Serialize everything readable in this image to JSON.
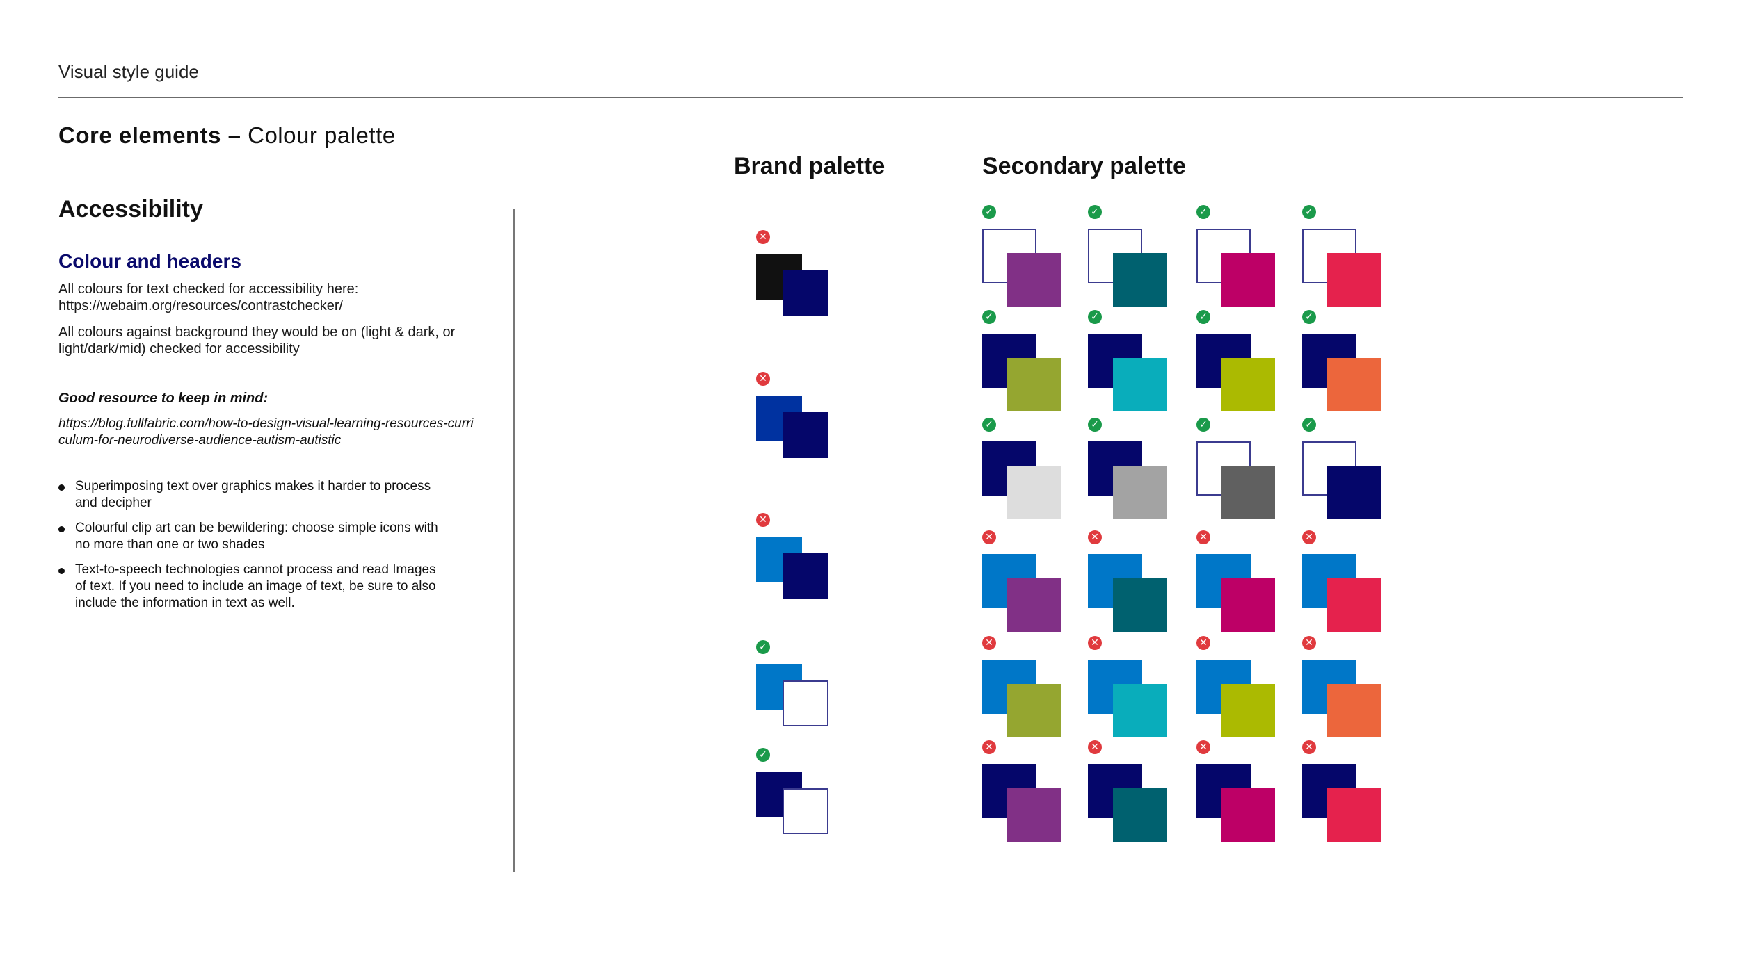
{
  "header": {
    "doc_label": "Visual style guide",
    "section_bold": "Core elements –",
    "section_sub": "Colour palette"
  },
  "left": {
    "heading": "Accessibility",
    "subheading": "Colour and headers",
    "para1": "All colours for text  checked for accessibility here: https://webaim.org/resources/contrastchecker/",
    "para2": "All colours against background they would be on (light & dark, or light/dark/mid) checked for accessibility",
    "resource_heading": "Good resource to keep in mind:",
    "resource_link": "https://blog.fullfabric.com/how-to-design-visual-learning-resources-curriculum-for-neurodiverse-audience-autism-autistic",
    "bullets": [
      "Superimposing text over graphics makes it harder to process and decipher",
      "Colourful clip art can be bewildering: choose simple icons with no more than one or two shades",
      "Text-to-speech technologies cannot process and read Images of text. If you need to include an image of text, be sure to also include the information in text as well."
    ]
  },
  "brand_palette": {
    "title": "Brand palette",
    "swatches": [
      {
        "back": "#111111",
        "front": "#05066a",
        "status": "fail"
      },
      {
        "back": "#0032a0",
        "front": "#05066a",
        "status": "fail"
      },
      {
        "back": "#0077c8",
        "front": "#05066a",
        "status": "fail"
      },
      {
        "back": "#0077c8",
        "front": "#ffffff",
        "status": "pass"
      },
      {
        "back": "#05066a",
        "front": "#ffffff",
        "status": "pass"
      }
    ]
  },
  "secondary_palette": {
    "title": "Secondary palette",
    "rows": [
      [
        {
          "back": "#ffffff",
          "front": "#813086",
          "status": "pass"
        },
        {
          "back": "#ffffff",
          "front": "#00616f",
          "status": "pass"
        },
        {
          "back": "#ffffff",
          "front": "#bd0066",
          "status": "pass"
        },
        {
          "back": "#ffffff",
          "front": "#e5224d",
          "status": "pass"
        }
      ],
      [
        {
          "back": "#05066a",
          "front": "#95a630",
          "status": "pass"
        },
        {
          "back": "#05066a",
          "front": "#09adbb",
          "status": "pass"
        },
        {
          "back": "#05066a",
          "front": "#abba01",
          "status": "pass"
        },
        {
          "back": "#05066a",
          "front": "#ec663c",
          "status": "pass"
        }
      ],
      [
        {
          "back": "#05066a",
          "front": "#dddddd",
          "status": "pass"
        },
        {
          "back": "#05066a",
          "front": "#a3a3a3",
          "status": "pass"
        },
        {
          "back": "#ffffff",
          "front": "#606060",
          "status": "pass"
        },
        {
          "back": "#ffffff",
          "front": "#05066a",
          "status": "pass"
        }
      ],
      [
        {
          "back": "#0077c8",
          "front": "#813086",
          "status": "fail"
        },
        {
          "back": "#0077c8",
          "front": "#00616f",
          "status": "fail"
        },
        {
          "back": "#0077c8",
          "front": "#bd0066",
          "status": "fail"
        },
        {
          "back": "#0077c8",
          "front": "#e5224d",
          "status": "fail"
        }
      ],
      [
        {
          "back": "#0077c8",
          "front": "#95a630",
          "status": "fail"
        },
        {
          "back": "#0077c8",
          "front": "#09adbb",
          "status": "fail"
        },
        {
          "back": "#0077c8",
          "front": "#abba01",
          "status": "fail"
        },
        {
          "back": "#0077c8",
          "front": "#ec663c",
          "status": "fail"
        }
      ],
      [
        {
          "back": "#05066a",
          "front": "#813086",
          "status": "fail"
        },
        {
          "back": "#05066a",
          "front": "#00616f",
          "status": "fail"
        },
        {
          "back": "#05066a",
          "front": "#bd0066",
          "status": "fail"
        },
        {
          "back": "#05066a",
          "front": "#e5224d",
          "status": "fail"
        }
      ]
    ]
  },
  "icons": {
    "pass": "check-circle-icon",
    "fail": "cross-circle-icon"
  }
}
